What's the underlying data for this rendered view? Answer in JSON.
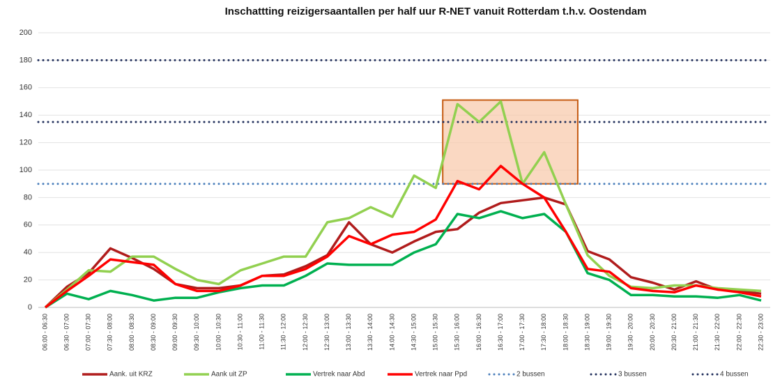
{
  "chart_data": {
    "type": "line",
    "title": "Inschattting reizigersaantallen per half uur R-NET vanuit Rotterdam t.h.v. Oostendam",
    "categories": [
      "06:00 - 06:30",
      "06:30 - 07:00",
      "07:00 - 07:30",
      "07:30 - 08:00",
      "08:00 - 08:30",
      "08:30 - 09:00",
      "09:00 - 09:30",
      "09:30 - 10:00",
      "10:00 - 10:30",
      "10:30 - 11:00",
      "11:00 - 11:30",
      "11:30 - 12:00",
      "12:00 - 12:30",
      "12:30 - 13:00",
      "13:00 - 13:30",
      "13:30 - 14:00",
      "14:00 - 14:30",
      "14:30 - 15:00",
      "15:00 - 15:30",
      "15:30 - 16:00",
      "16:00 - 16:30",
      "16:30 - 17:00",
      "17:00 - 17:30",
      "17:30 - 18:00",
      "18:00 - 18:30",
      "18:30 - 19:00",
      "19:00 - 19:30",
      "19:30 - 20:00",
      "20:00 - 20:30",
      "20:30 - 21:00",
      "21:00 - 21:30",
      "21:30 - 22:00",
      "22:00 - 22:30",
      "22:30 - 23:00"
    ],
    "series": [
      {
        "name": "Aank. uit KRZ",
        "color": "#b01c1c",
        "values": [
          0,
          15,
          25,
          43,
          36,
          28,
          17,
          14,
          14,
          16,
          23,
          24,
          30,
          38,
          62,
          46,
          40,
          48,
          55,
          57,
          69,
          76,
          78,
          80,
          75,
          41,
          35,
          22,
          18,
          13,
          19,
          13,
          12,
          10
        ]
      },
      {
        "name": "Aank uit ZP",
        "color": "#92d050",
        "values": [
          0,
          13,
          27,
          26,
          37,
          37,
          28,
          20,
          17,
          27,
          32,
          37,
          37,
          62,
          65,
          73,
          66,
          96,
          87,
          148,
          135,
          150,
          90,
          113,
          75,
          38,
          23,
          15,
          14,
          16,
          16,
          14,
          13,
          12
        ]
      },
      {
        "name": "Vertrek naar Abd",
        "color": "#00b050",
        "values": [
          0,
          10,
          6,
          12,
          9,
          5,
          7,
          7,
          11,
          14,
          16,
          16,
          23,
          32,
          31,
          31,
          31,
          40,
          46,
          68,
          65,
          70,
          65,
          68,
          55,
          25,
          20,
          9,
          9,
          8,
          8,
          7,
          9,
          5
        ]
      },
      {
        "name": "Vertrek naar Ppd",
        "color": "#ff0000",
        "values": [
          0,
          12,
          23,
          35,
          33,
          31,
          17,
          12,
          12,
          16,
          23,
          23,
          28,
          37,
          52,
          46,
          53,
          55,
          64,
          92,
          86,
          103,
          90,
          80,
          55,
          28,
          26,
          14,
          12,
          11,
          16,
          13,
          11,
          8
        ]
      }
    ],
    "thresholds": [
      {
        "name": "2 bussen",
        "value": 90,
        "color": "#4a7ebb"
      },
      {
        "name": "3 bussen",
        "value": 135,
        "color": "#1f2d5a"
      },
      {
        "name": "4 bussen",
        "value": 180,
        "color": "#1f2d5a"
      }
    ],
    "highlight": {
      "from": "15:00 - 15:30",
      "to": "18:00 - 18:30",
      "yrange": [
        90,
        151
      ],
      "color": "#f8cbad",
      "edge": "#c55a11"
    },
    "ylim": [
      0,
      200
    ],
    "yticks": [
      0,
      20,
      40,
      60,
      80,
      100,
      120,
      140,
      160,
      180,
      200
    ],
    "grid": true
  }
}
